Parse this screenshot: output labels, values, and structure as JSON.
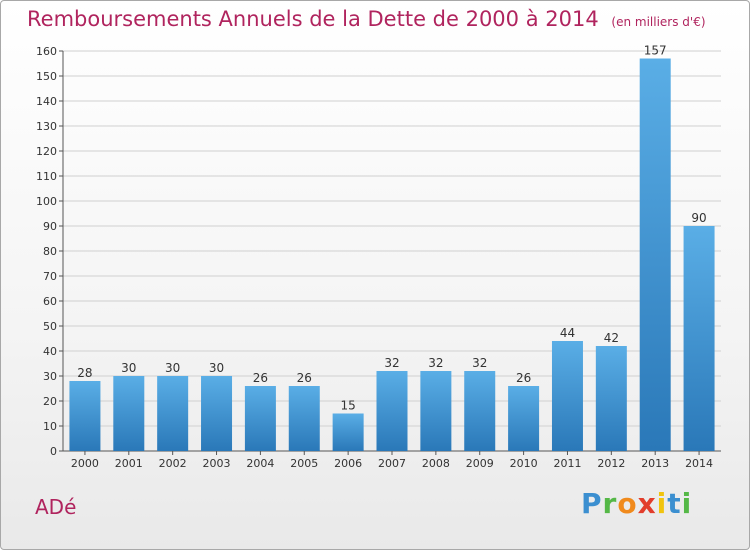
{
  "header": {
    "title": "Remboursements Annuels de la Dette de 2000 à 2014",
    "subtitle": "(en milliers d'€)"
  },
  "footer": {
    "commune": "ADé",
    "logo_letters": [
      "P",
      "r",
      "o",
      "x",
      "i",
      "t",
      "i"
    ]
  },
  "colors": {
    "title": "#b0245e",
    "bar_top": "#5aaee6",
    "bar_bottom": "#2a78b8",
    "grid": "#d0d0d0"
  },
  "chart_data": {
    "type": "bar",
    "title": "Remboursements Annuels de la Dette de 2000 à 2014",
    "subtitle": "(en milliers d'€)",
    "categories": [
      "2000",
      "2001",
      "2002",
      "2003",
      "2004",
      "2005",
      "2006",
      "2007",
      "2008",
      "2009",
      "2010",
      "2011",
      "2012",
      "2013",
      "2014"
    ],
    "values": [
      28,
      30,
      30,
      30,
      26,
      26,
      15,
      32,
      32,
      32,
      26,
      44,
      42,
      157,
      90
    ],
    "ylim": [
      0,
      160
    ],
    "yticks": [
      0,
      10,
      20,
      30,
      40,
      50,
      60,
      70,
      80,
      90,
      100,
      110,
      120,
      130,
      140,
      150,
      160
    ],
    "grid": true,
    "data_labels": true
  }
}
